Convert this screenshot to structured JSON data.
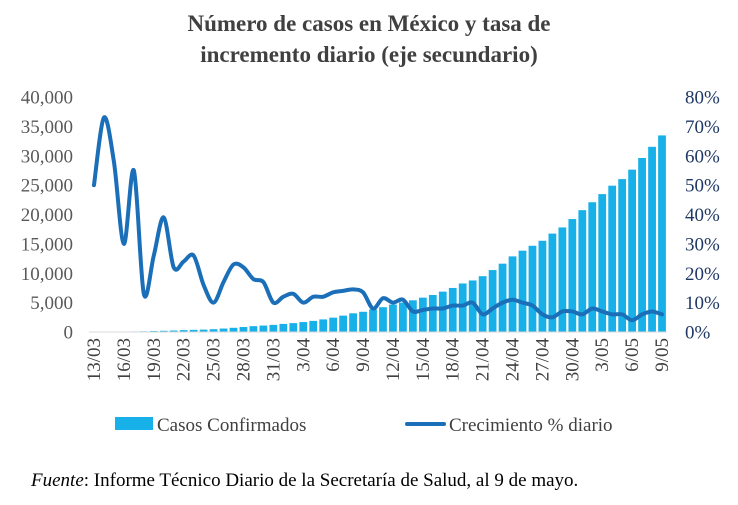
{
  "colors": {
    "bars": "#17b0e8",
    "line": "#1a6fb8",
    "left_axis": "#595959",
    "right_axis": "#1f3864"
  },
  "source": {
    "label": "Fuente",
    "text": ": Informe Técnico Diario de la Secretaría de Salud, al 9 de mayo."
  },
  "chart_data": {
    "type": "bar",
    "title_line1": "Número de casos en México y tasa de",
    "title_line2": "incremento diario (eje secundario)",
    "categories": [
      "13/03",
      "14/03",
      "15/03",
      "16/03",
      "17/03",
      "18/03",
      "19/03",
      "20/03",
      "21/03",
      "22/03",
      "23/03",
      "24/03",
      "25/03",
      "26/03",
      "27/03",
      "28/03",
      "29/03",
      "30/03",
      "31/03",
      "1/04",
      "2/04",
      "3/04",
      "4/04",
      "5/04",
      "6/04",
      "7/04",
      "8/04",
      "9/04",
      "10/04",
      "11/04",
      "12/04",
      "13/04",
      "14/04",
      "15/04",
      "16/04",
      "17/04",
      "18/04",
      "19/04",
      "20/04",
      "21/04",
      "22/04",
      "23/04",
      "24/04",
      "25/04",
      "26/04",
      "27/04",
      "28/04",
      "29/04",
      "30/04",
      "1/05",
      "2/05",
      "3/05",
      "4/05",
      "5/05",
      "6/05",
      "7/05",
      "8/05",
      "9/05"
    ],
    "x_tick_labels": [
      "13/03",
      "16/03",
      "19/03",
      "22/03",
      "25/03",
      "28/03",
      "31/03",
      "3/04",
      "6/04",
      "9/04",
      "12/04",
      "15/04",
      "18/04",
      "21/04",
      "24/04",
      "27/04",
      "30/04",
      "3/05",
      "6/05",
      "9/05"
    ],
    "series": [
      {
        "name": "Casos Confirmados",
        "type": "bar",
        "axis": "left",
        "values": [
          26,
          41,
          53,
          82,
          93,
          118,
          164,
          203,
          251,
          316,
          367,
          405,
          475,
          585,
          717,
          848,
          993,
          1094,
          1215,
          1378,
          1510,
          1688,
          1890,
          2143,
          2439,
          2785,
          3181,
          3441,
          3844,
          4219,
          4661,
          5014,
          5399,
          5847,
          6297,
          6875,
          7497,
          8261,
          8772,
          9501,
          10544,
          11633,
          12872,
          13842,
          14677,
          15529,
          16752,
          17799,
          19224,
          20739,
          22088,
          23471,
          24905,
          26025,
          27634,
          29616,
          31522,
          33460
        ]
      },
      {
        "name": "Crecimiento % diario",
        "type": "line",
        "axis": "right",
        "values": [
          0.5,
          0.73,
          0.58,
          0.3,
          0.55,
          0.13,
          0.26,
          0.39,
          0.22,
          0.24,
          0.26,
          0.16,
          0.1,
          0.17,
          0.23,
          0.22,
          0.18,
          0.17,
          0.1,
          0.12,
          0.13,
          0.1,
          0.12,
          0.12,
          0.135,
          0.14,
          0.145,
          0.135,
          0.08,
          0.115,
          0.1,
          0.11,
          0.07,
          0.075,
          0.08,
          0.08,
          0.09,
          0.09,
          0.1,
          0.06,
          0.08,
          0.1,
          0.11,
          0.1,
          0.09,
          0.06,
          0.05,
          0.07,
          0.07,
          0.06,
          0.08,
          0.07,
          0.06,
          0.06,
          0.04,
          0.06,
          0.07,
          0.06
        ]
      }
    ],
    "y_left": {
      "min": 0,
      "max": 40000,
      "ticks": [
        "0",
        "5,000",
        "10,000",
        "15,000",
        "20,000",
        "25,000",
        "30,000",
        "35,000",
        "40,000"
      ]
    },
    "y_right": {
      "min": 0,
      "max": 0.8,
      "ticks": [
        "0%",
        "10%",
        "20%",
        "30%",
        "40%",
        "50%",
        "60%",
        "70%",
        "80%"
      ]
    },
    "legend": [
      {
        "name": "Casos Confirmados",
        "style": "bar"
      },
      {
        "name": "Crecimiento % diario",
        "style": "line"
      }
    ],
    "grid": false,
    "legend_position": "bottom"
  }
}
